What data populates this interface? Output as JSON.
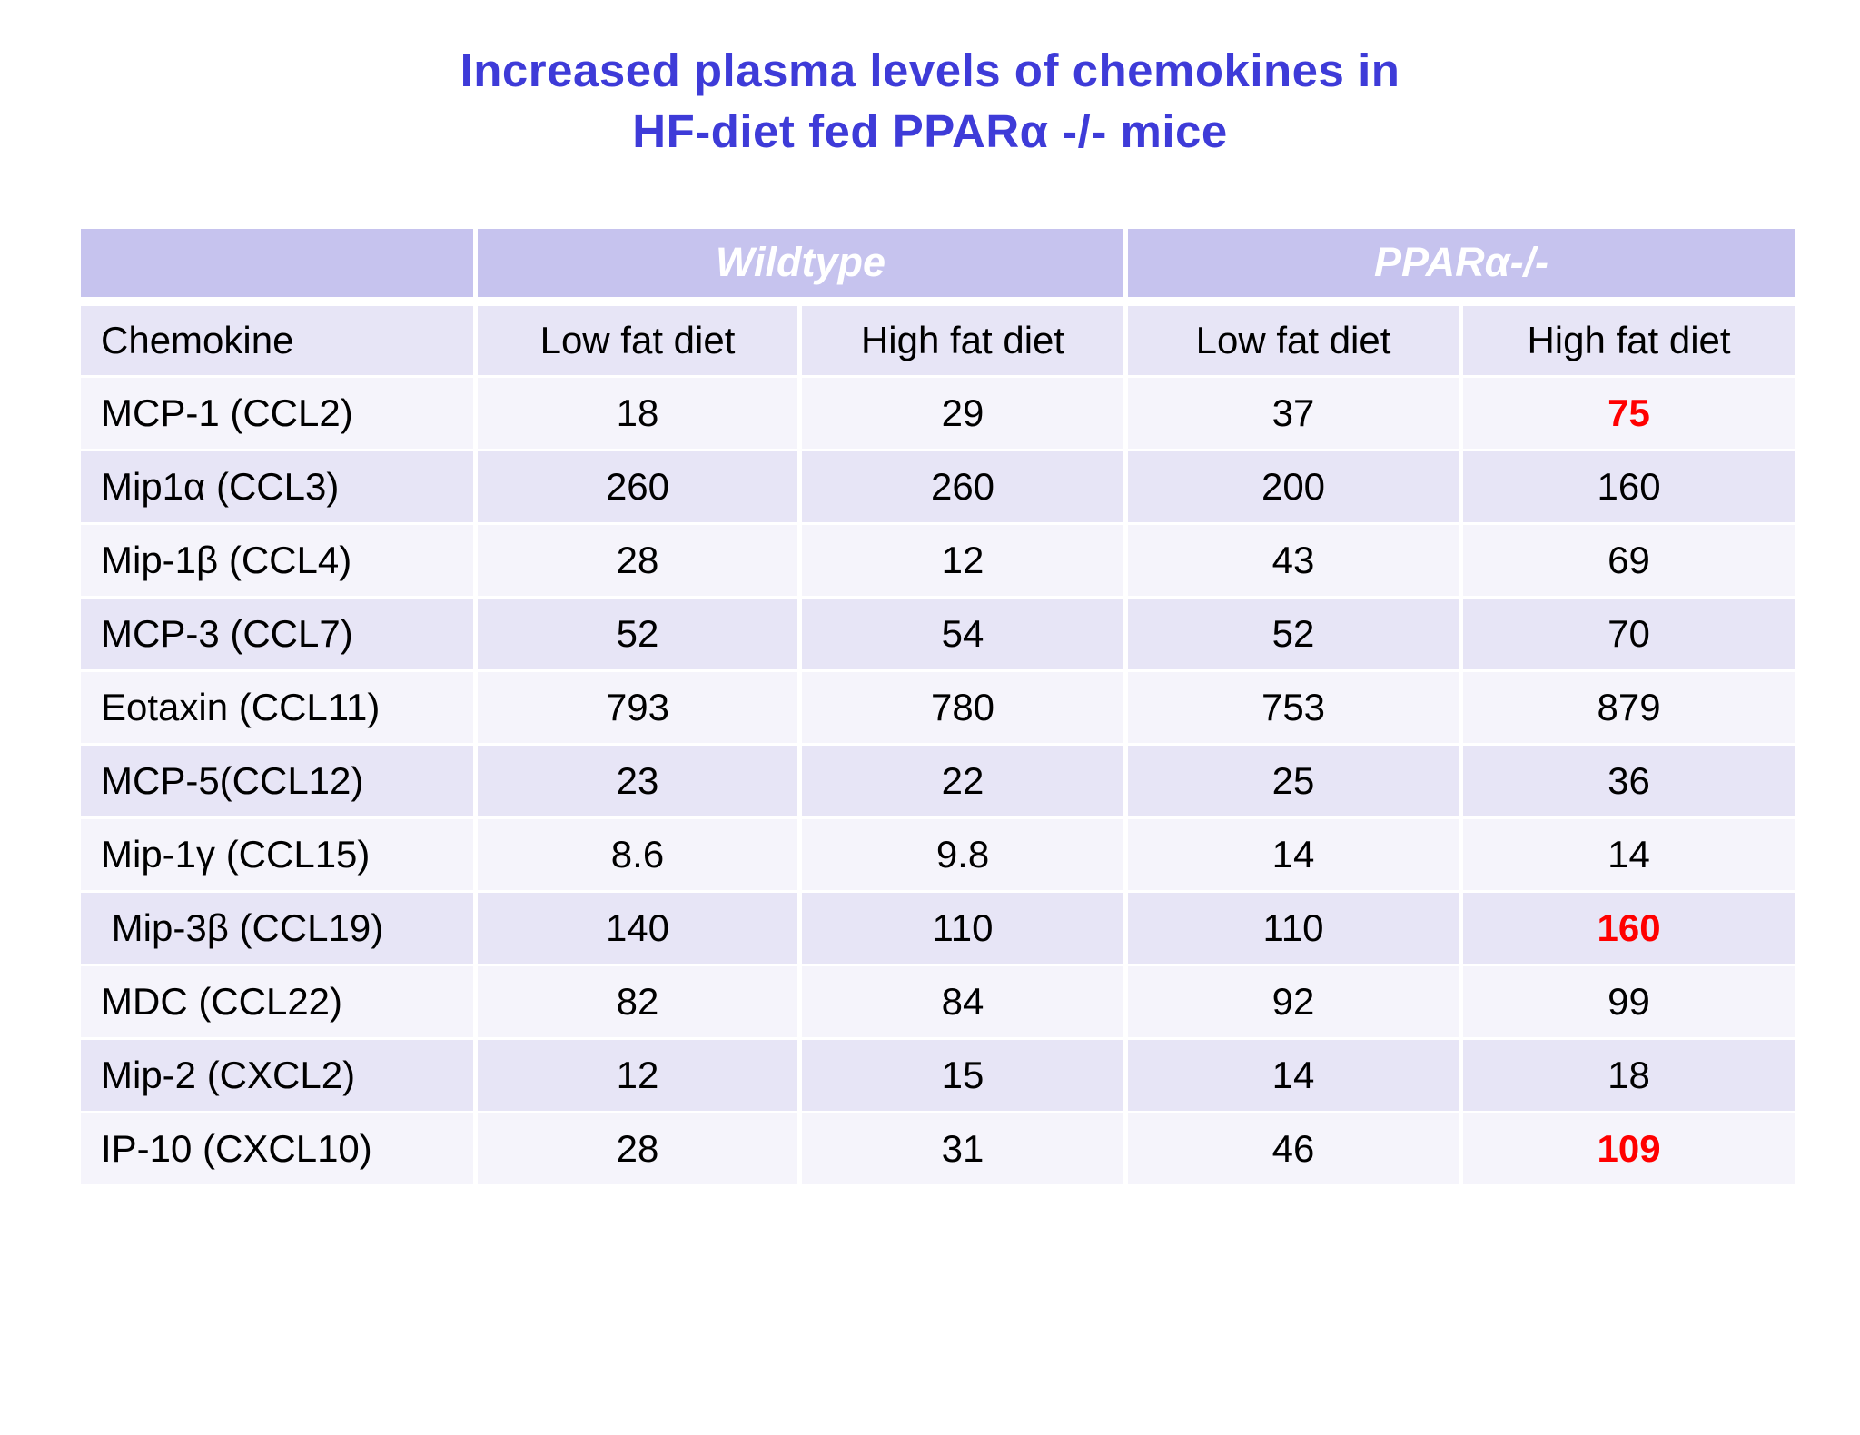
{
  "title": {
    "line1": "Increased plasma levels of chemokines in",
    "line2": "HF-diet fed PPARα -/- mice"
  },
  "colors": {
    "title_blue": "#3e3bd8",
    "band_purple": "#c6c3ee",
    "row_dark": "#e7e5f6",
    "row_light": "#f5f4fb",
    "highlight_red": "#ff0000",
    "band_text": "#ffffff",
    "body_text": "#000000"
  },
  "table": {
    "groups": [
      "Wildtype",
      "PPARα-/-"
    ],
    "columns": [
      "Chemokine",
      "Low fat diet",
      "High fat diet",
      "Low fat diet",
      "High fat diet"
    ],
    "rows": [
      {
        "label": "MCP-1 (CCL2)",
        "values": [
          "18",
          "29",
          "37",
          "75"
        ],
        "highlight": [
          3
        ]
      },
      {
        "label": "Mip1α (CCL3)",
        "values": [
          "260",
          "260",
          "200",
          "160"
        ],
        "highlight": []
      },
      {
        "label": "Mip-1β (CCL4)",
        "values": [
          "28",
          "12",
          "43",
          "69"
        ],
        "highlight": []
      },
      {
        "label": "MCP-3 (CCL7)",
        "values": [
          "52",
          "54",
          "52",
          "70"
        ],
        "highlight": []
      },
      {
        "label": "Eotaxin (CCL11)",
        "values": [
          "793",
          "780",
          "753",
          "879"
        ],
        "highlight": []
      },
      {
        "label": "MCP-5(CCL12)",
        "values": [
          "23",
          "22",
          "25",
          "36"
        ],
        "highlight": []
      },
      {
        "label": "Mip-1γ (CCL15)",
        "values": [
          "8.6",
          "9.8",
          "14",
          "14"
        ],
        "highlight": []
      },
      {
        "label": " Mip-3β (CCL19)",
        "values": [
          "140",
          "110",
          "110",
          "160"
        ],
        "highlight": [
          3
        ]
      },
      {
        "label": "MDC (CCL22)",
        "values": [
          "82",
          "84",
          "92",
          "99"
        ],
        "highlight": []
      },
      {
        "label": "Mip-2 (CXCL2)",
        "values": [
          "12",
          "15",
          "14",
          "18"
        ],
        "highlight": []
      },
      {
        "label": "IP-10 (CXCL10)",
        "values": [
          "28",
          "31",
          "46",
          "109"
        ],
        "highlight": [
          3
        ]
      }
    ]
  }
}
